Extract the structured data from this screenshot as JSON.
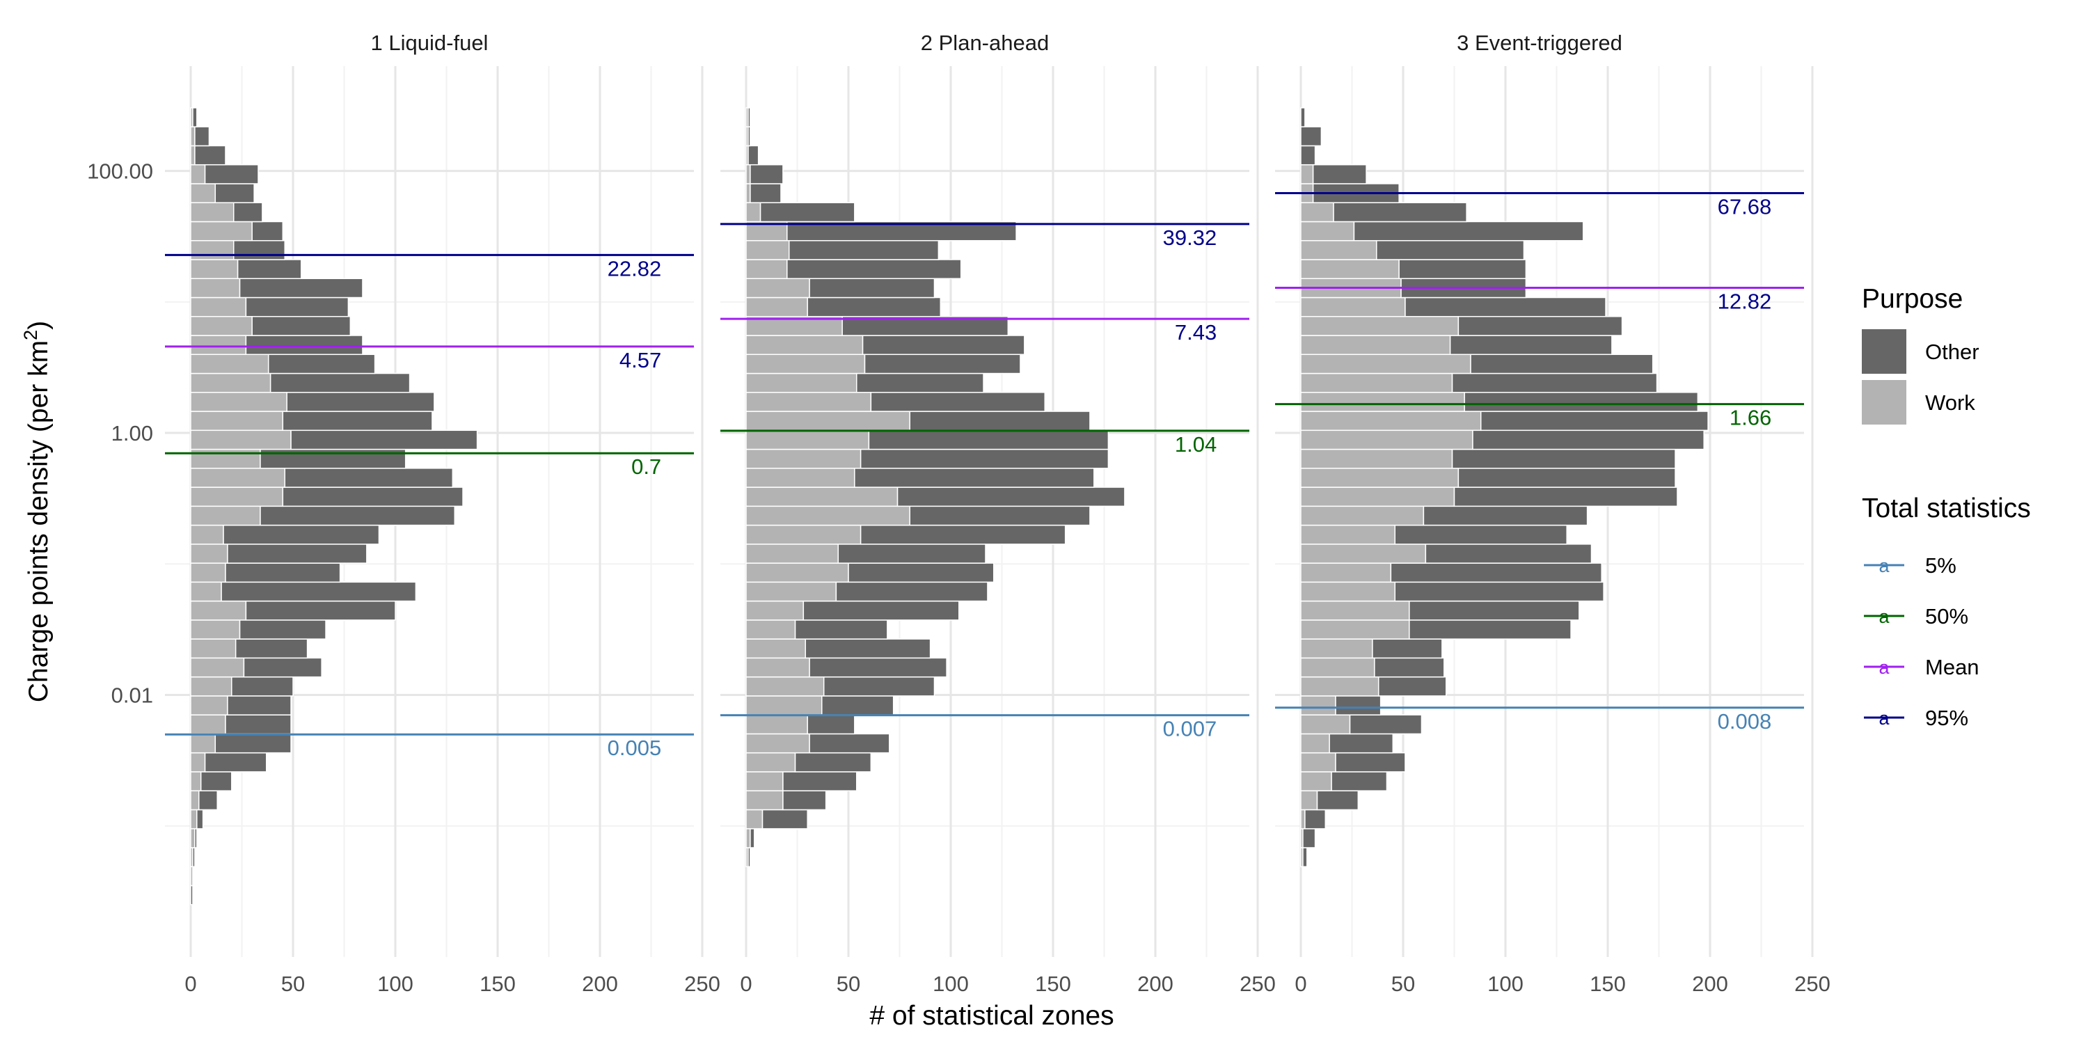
{
  "colors": {
    "work": "#b3b3b3",
    "other": "#666666",
    "grid_major": "#e6e6e6",
    "grid_minor": "#f2f2f2",
    "text": "#000000",
    "tick_text": "#4d4d4d",
    "p5": "#4682b4",
    "p50": "#006400",
    "mean": "#a020f0",
    "p95": "#00008b"
  },
  "chart_data": {
    "type": "bar",
    "orientation": "horizontal-stacked-histogram",
    "xlabel": "# of statistical zones",
    "ylabel_parts": [
      "Charge points density (per km",
      "2",
      ")"
    ],
    "y_scale": "log10",
    "y_ticks": [
      {
        "value": 100,
        "label": "100.00"
      },
      {
        "value": 1,
        "label": "1.00"
      },
      {
        "value": 0.01,
        "label": "0.01"
      }
    ],
    "x_ticks": [
      0,
      50,
      100,
      150,
      200,
      250
    ],
    "xlim": [
      0,
      250
    ],
    "ylim_log10": [
      -4.0,
      2.8
    ],
    "bin_start_log10": -3.6,
    "bin_width_log10": 0.1448,
    "grid": true,
    "legend": {
      "purpose_title": "Purpose",
      "purpose_items": [
        {
          "label": "Other",
          "key": "other"
        },
        {
          "label": "Work",
          "key": "work"
        }
      ],
      "stats_title": "Total statistics",
      "stats_items": [
        {
          "label": "5%",
          "key": "p5"
        },
        {
          "label": "50%",
          "key": "p50"
        },
        {
          "label": "Mean",
          "key": "mean"
        },
        {
          "label": "95%",
          "key": "p95"
        }
      ],
      "key_glyph": "a",
      "placement": "right"
    },
    "panels": [
      {
        "title": "1 Liquid-fuel",
        "work": [
          0,
          1,
          1,
          2,
          3,
          4,
          5,
          7,
          12,
          17,
          18,
          20,
          26,
          22,
          24,
          27,
          15,
          17,
          18,
          16,
          34,
          45,
          46,
          34,
          49,
          45,
          47,
          39,
          38,
          27,
          30,
          27,
          24,
          23,
          21,
          30,
          21,
          12,
          7,
          2,
          2,
          1
        ],
        "other": [
          1,
          0,
          1,
          1,
          3,
          9,
          15,
          30,
          37,
          32,
          31,
          30,
          38,
          35,
          42,
          73,
          95,
          56,
          68,
          76,
          95,
          88,
          82,
          71,
          91,
          73,
          72,
          68,
          52,
          57,
          48,
          50,
          60,
          31,
          25,
          15,
          14,
          19,
          26,
          15,
          7,
          2
        ],
        "stats": [
          {
            "key": "p5",
            "value": 0.005,
            "label": "0.005"
          },
          {
            "key": "p50",
            "value": 0.7,
            "label": "0.7"
          },
          {
            "key": "mean",
            "value": 4.57,
            "label": "4.57"
          },
          {
            "key": "p95",
            "value": 22.82,
            "label": "22.82"
          }
        ]
      },
      {
        "title": "2 Plan-ahead",
        "work": [
          0,
          0,
          1,
          2,
          8,
          18,
          18,
          24,
          31,
          30,
          37,
          38,
          31,
          29,
          24,
          28,
          44,
          50,
          45,
          56,
          80,
          74,
          53,
          56,
          60,
          80,
          61,
          54,
          58,
          57,
          47,
          30,
          31,
          20,
          21,
          20,
          7,
          2,
          2,
          1,
          1,
          1
        ],
        "other": [
          0,
          0,
          1,
          2,
          22,
          21,
          36,
          37,
          39,
          23,
          35,
          54,
          67,
          61,
          45,
          76,
          74,
          71,
          72,
          100,
          88,
          111,
          117,
          121,
          117,
          88,
          85,
          62,
          76,
          79,
          81,
          65,
          61,
          85,
          73,
          112,
          46,
          15,
          16,
          5,
          1,
          1
        ],
        "stats": [
          {
            "key": "p5",
            "value": 0.007,
            "label": "0.007"
          },
          {
            "key": "p50",
            "value": 1.04,
            "label": "1.04"
          },
          {
            "key": "mean",
            "value": 7.43,
            "label": "7.43"
          },
          {
            "key": "p95",
            "value": 39.32,
            "label": "39.32"
          }
        ]
      },
      {
        "title": "3 Event-triggered",
        "work": [
          0,
          0,
          1,
          1,
          2,
          8,
          15,
          17,
          14,
          24,
          17,
          38,
          36,
          35,
          53,
          53,
          46,
          44,
          61,
          46,
          60,
          75,
          77,
          74,
          84,
          88,
          80,
          74,
          83,
          73,
          77,
          51,
          49,
          48,
          37,
          26,
          16,
          6,
          6,
          0,
          0,
          0
        ],
        "other": [
          0,
          0,
          2,
          6,
          10,
          20,
          27,
          34,
          31,
          35,
          22,
          33,
          34,
          34,
          79,
          83,
          102,
          103,
          81,
          84,
          80,
          109,
          106,
          109,
          113,
          111,
          114,
          100,
          89,
          79,
          80,
          98,
          61,
          62,
          72,
          112,
          65,
          42,
          26,
          7,
          10,
          2
        ],
        "stats": [
          {
            "key": "p5",
            "value": 0.008,
            "label": "0.008"
          },
          {
            "key": "p50",
            "value": 1.66,
            "label": "1.66"
          },
          {
            "key": "mean",
            "value": 12.82,
            "label": "12.82"
          },
          {
            "key": "p95",
            "value": 67.68,
            "label": "67.68"
          }
        ]
      }
    ]
  }
}
